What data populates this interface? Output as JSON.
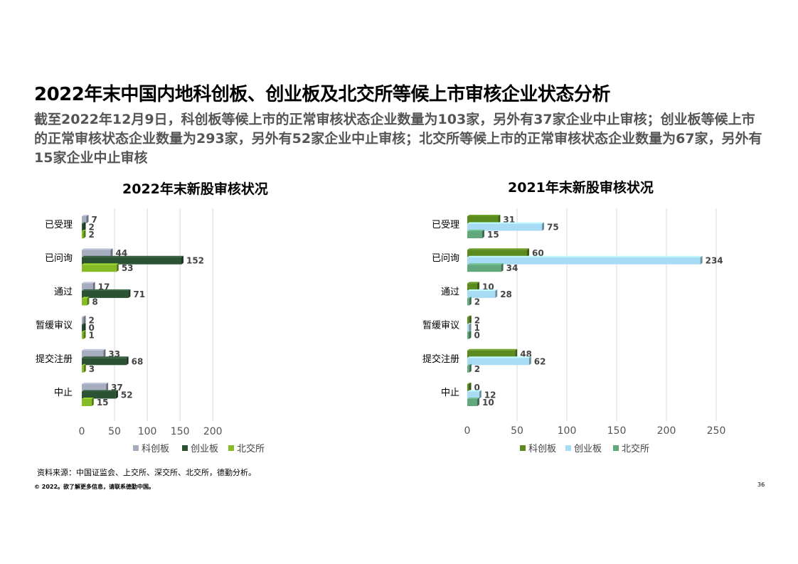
{
  "page": {
    "title": "2022年末中国内地科创板、创业板及北交所等候上市审核企业状态分析",
    "subtitle": "截至2022年12月9日，科创板等候上市的正常审核状态企业数量为103家，另外有37家企业中止审核；创业板等候上市的正常审核状态企业数量为293家，另外有52家企业中止审核；北交所等候上市的正常审核状态企业数量为67家，另外有15家企业中止审核",
    "source": "资料来源：中国证监会、上交所、深交所、北交所，德勤分析。",
    "copyright": "© 2022。欲了解更多信息，请联系德勤中国。",
    "page_number": "36"
  },
  "chart_data": [
    {
      "type": "bar",
      "orientation": "horizontal",
      "title": "2022年末新股审核状况",
      "categories": [
        "已受理",
        "已问询",
        "通过",
        "暂缓审议",
        "提交注册",
        "中止"
      ],
      "series": [
        {
          "name": "科创板",
          "color": "#a6adbf",
          "values": [
            7,
            44,
            17,
            2,
            33,
            37
          ]
        },
        {
          "name": "创业板",
          "color": "#2c5234",
          "values": [
            2,
            152,
            71,
            0,
            68,
            52
          ]
        },
        {
          "name": "北交所",
          "color": "#86bc25",
          "values": [
            2,
            53,
            8,
            1,
            3,
            15
          ]
        }
      ],
      "xlim": [
        0,
        200
      ],
      "ticks": [
        "0",
        "50",
        "100",
        "150",
        "200"
      ],
      "grid": true,
      "legend": "bottom"
    },
    {
      "type": "bar",
      "orientation": "horizontal",
      "title": "2021年末新股审核状况",
      "categories": [
        "已受理",
        "已问询",
        "通过",
        "暂缓审议",
        "提交注册",
        "中止"
      ],
      "series": [
        {
          "name": "科创板",
          "color": "#5b8a1e",
          "values": [
            31,
            60,
            10,
            2,
            48,
            0
          ]
        },
        {
          "name": "创业板",
          "color": "#a8dcf5",
          "values": [
            75,
            234,
            28,
            1,
            62,
            12
          ]
        },
        {
          "name": "北交所",
          "color": "#62a87c",
          "values": [
            15,
            34,
            2,
            0,
            2,
            10
          ]
        }
      ],
      "xlim": [
        0,
        250
      ],
      "ticks": [
        "0",
        "50",
        "100",
        "150",
        "200",
        "250"
      ],
      "grid": true,
      "legend": "bottom"
    }
  ]
}
